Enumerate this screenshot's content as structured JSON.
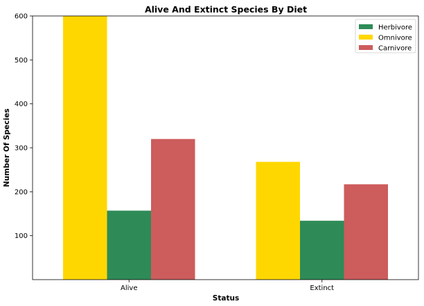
{
  "chart_data": {
    "type": "bar",
    "title": "Alive And Extinct Species By Diet",
    "xlabel": "Status",
    "ylabel": "Number Of Species",
    "categories": [
      "Alive",
      "Extinct"
    ],
    "series": [
      {
        "name": "Omnivore",
        "color": "#FFD700",
        "values": [
          600,
          268
        ]
      },
      {
        "name": "Herbivore",
        "color": "#2E8B57",
        "values": [
          157,
          134
        ]
      },
      {
        "name": "Carnivore",
        "color": "#CD5C5C",
        "values": [
          320,
          217
        ]
      }
    ],
    "legend_order": [
      "Herbivore",
      "Omnivore",
      "Carnivore"
    ],
    "ylim": [
      0,
      600
    ],
    "yticks": [
      100,
      200,
      300,
      400,
      500,
      600
    ],
    "grid": false,
    "legend_position": "top-right"
  }
}
